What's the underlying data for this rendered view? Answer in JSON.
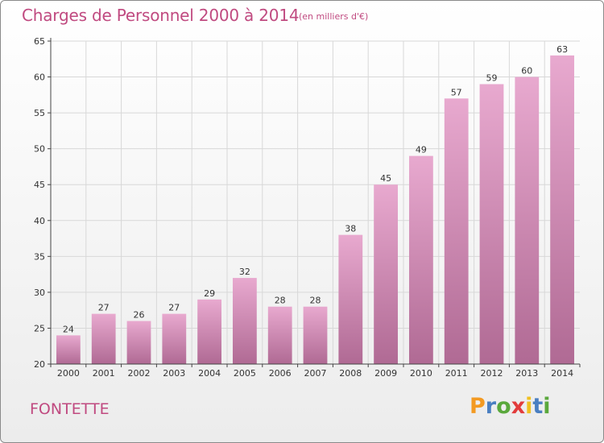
{
  "chart_data": {
    "type": "bar",
    "title": "Charges de Personnel 2000 à 2014",
    "subtitle": "(en milliers d'€)",
    "categories": [
      "2000",
      "2001",
      "2002",
      "2003",
      "2004",
      "2005",
      "2006",
      "2007",
      "2008",
      "2009",
      "2010",
      "2011",
      "2012",
      "2013",
      "2014"
    ],
    "values": [
      24,
      27,
      26,
      27,
      29,
      32,
      28,
      28,
      38,
      45,
      49,
      57,
      59,
      60,
      63
    ],
    "ylim": [
      20,
      65
    ],
    "yticks": [
      20,
      25,
      30,
      35,
      40,
      45,
      50,
      55,
      60,
      65
    ],
    "grid": true,
    "colors": {
      "bar_top": "#e8a9cf",
      "bar_bottom": "#b06a94",
      "grid": "#d8d8d8",
      "axis": "#444444",
      "accent": "#c04a80"
    }
  },
  "footer": {
    "commune": "FONTETTE",
    "logo": {
      "letters": [
        "P",
        "r",
        "o",
        "x",
        "i",
        "t",
        "i"
      ],
      "colors": [
        "#f39a22",
        "#4a7fc1",
        "#5aa83c",
        "#e23c3c",
        "#f0c020",
        "#4a7fc1",
        "#5aa83c"
      ]
    }
  }
}
